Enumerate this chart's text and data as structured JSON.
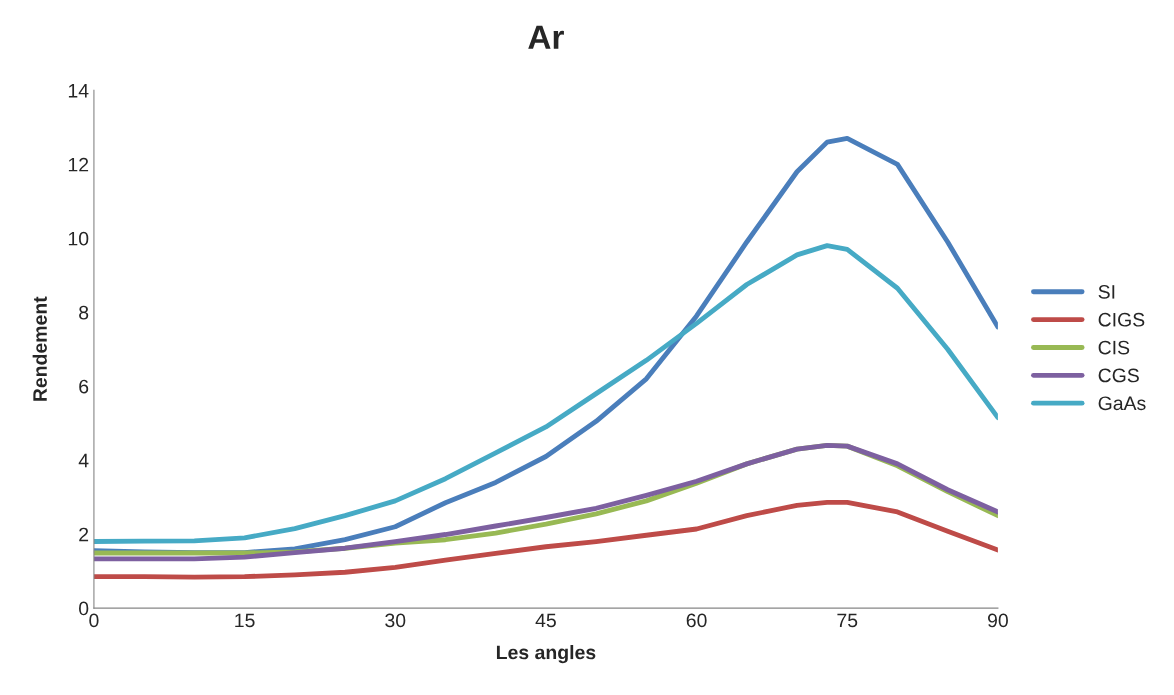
{
  "chart_data": {
    "type": "line",
    "title": "Ar",
    "xlabel": "Les angles",
    "ylabel": "Rendement",
    "x": [
      0,
      5,
      10,
      15,
      20,
      25,
      30,
      35,
      40,
      45,
      50,
      55,
      60,
      65,
      70,
      73,
      75,
      80,
      85,
      90
    ],
    "series": [
      {
        "name": "SI",
        "color": "#4a7ebb",
        "values": [
          1.55,
          1.52,
          1.5,
          1.5,
          1.6,
          1.85,
          2.2,
          2.85,
          3.4,
          4.1,
          5.05,
          6.2,
          7.9,
          9.9,
          11.8,
          12.6,
          12.7,
          12.0,
          9.9,
          7.6
        ]
      },
      {
        "name": "CIGS",
        "color": "#be4b48",
        "values": [
          0.85,
          0.85,
          0.84,
          0.85,
          0.9,
          0.97,
          1.1,
          1.3,
          1.48,
          1.66,
          1.8,
          1.97,
          2.14,
          2.5,
          2.78,
          2.86,
          2.86,
          2.6,
          2.08,
          1.57
        ]
      },
      {
        "name": "CIS",
        "color": "#98b954",
        "values": [
          1.49,
          1.49,
          1.49,
          1.49,
          1.52,
          1.62,
          1.76,
          1.85,
          2.03,
          2.27,
          2.55,
          2.9,
          3.38,
          3.9,
          4.3,
          4.4,
          4.38,
          3.85,
          3.15,
          2.5
        ]
      },
      {
        "name": "CGS",
        "color": "#7d60a0",
        "values": [
          1.33,
          1.33,
          1.33,
          1.38,
          1.5,
          1.62,
          1.8,
          1.99,
          2.22,
          2.45,
          2.7,
          3.05,
          3.43,
          3.9,
          4.3,
          4.4,
          4.38,
          3.9,
          3.2,
          2.6
        ]
      },
      {
        "name": "GaAs",
        "color": "#46aac5",
        "values": [
          1.8,
          1.81,
          1.82,
          1.9,
          2.15,
          2.5,
          2.9,
          3.5,
          4.2,
          4.9,
          5.8,
          6.7,
          7.7,
          8.75,
          9.55,
          9.8,
          9.7,
          8.65,
          7.0,
          5.15
        ]
      }
    ],
    "xlim": [
      0,
      90
    ],
    "xticks": [
      0,
      15,
      30,
      45,
      60,
      75,
      90
    ],
    "ylim": [
      0,
      14
    ],
    "yticks": [
      0,
      2,
      4,
      6,
      8,
      10,
      12,
      14
    ],
    "grid": false,
    "legend": "right",
    "marker": "none",
    "line_style": "solid"
  }
}
